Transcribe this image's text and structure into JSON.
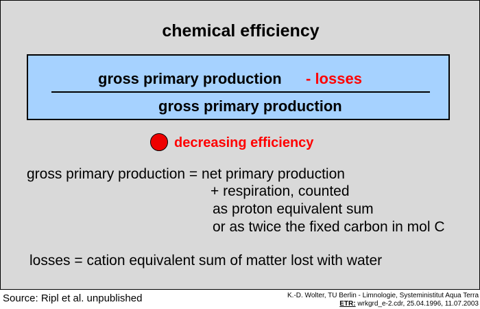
{
  "title": "chemical efficiency",
  "formula": {
    "numerator": "gross primary production",
    "losses": "- losses",
    "denominator": "gross primary production"
  },
  "note": {
    "text": "decreasing efficiency",
    "bullet_color": "#ee0000"
  },
  "definitions": {
    "gpp": [
      "gross primary production = net primary production",
      "+ respiration, counted",
      "as proton equivalent sum",
      "or as twice the fixed carbon in mol C"
    ],
    "losses": "losses = cation equivalent sum of matter lost with water"
  },
  "footer": {
    "source": "Source: Ripl et al. unpublished",
    "credit_line1": "K.-D. Wolter, TU Berlin - Limnologie, Systeministitut Aqua Terra",
    "etr_label": "ETR:",
    "credit_line2": " wrkgrd_e-2.cdr, 25.04.1996, 11.07.2003"
  },
  "colors": {
    "background": "#d9d9d9",
    "formula_box": "#a6d2ff",
    "accent_red": "#ff0000"
  }
}
